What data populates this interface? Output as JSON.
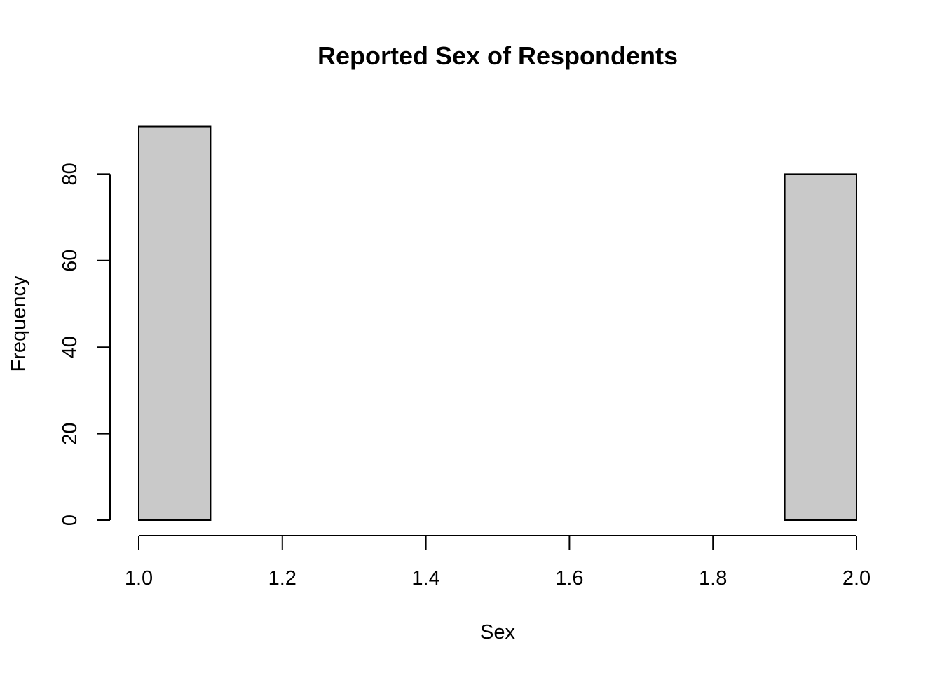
{
  "chart_data": {
    "type": "bar",
    "title": "Reported Sex of Respondents",
    "xlabel": "Sex",
    "ylabel": "Frequency",
    "bins": [
      {
        "start": 1.0,
        "end": 1.1,
        "count": 91
      },
      {
        "start": 1.1,
        "end": 1.2,
        "count": 0
      },
      {
        "start": 1.2,
        "end": 1.3,
        "count": 0
      },
      {
        "start": 1.3,
        "end": 1.4,
        "count": 0
      },
      {
        "start": 1.4,
        "end": 1.5,
        "count": 0
      },
      {
        "start": 1.5,
        "end": 1.6,
        "count": 0
      },
      {
        "start": 1.6,
        "end": 1.7,
        "count": 0
      },
      {
        "start": 1.7,
        "end": 1.8,
        "count": 0
      },
      {
        "start": 1.8,
        "end": 1.9,
        "count": 0
      },
      {
        "start": 1.9,
        "end": 2.0,
        "count": 80
      }
    ],
    "xlim": [
      1.0,
      2.0
    ],
    "ylim": [
      0,
      91
    ],
    "x_ticks": [
      "1.0",
      "1.2",
      "1.4",
      "1.6",
      "1.8",
      "2.0"
    ],
    "y_ticks": [
      "0",
      "20",
      "40",
      "60",
      "80"
    ],
    "bar_fill": "#c9c9c9",
    "grid": false,
    "legend": "none"
  }
}
